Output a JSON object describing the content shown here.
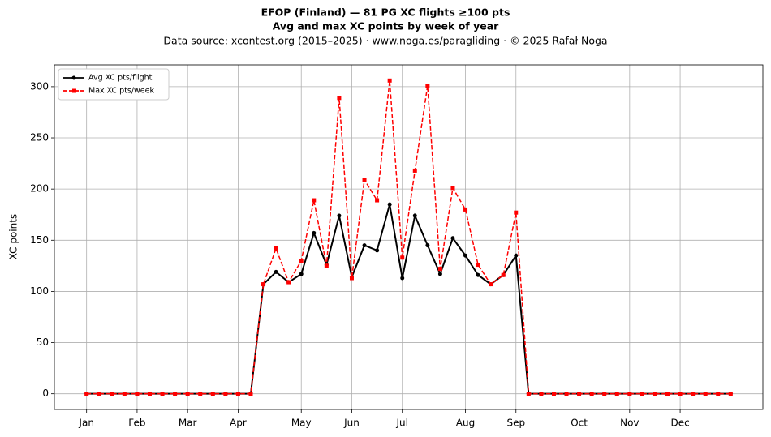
{
  "chart_data": {
    "type": "line",
    "title": "EFOP (Finland)  —  81 PG XC flights ≥100 pts",
    "subtitle": "Avg and max XC points by week of year",
    "source": "Data source: xcontest.org (2015–2025)  ·  www.noga.es/paragliding  ·  © 2025 Rafał Noga",
    "ylabel": "XC points",
    "x": [
      1,
      2,
      3,
      4,
      5,
      6,
      7,
      8,
      9,
      10,
      11,
      12,
      13,
      14,
      15,
      16,
      17,
      18,
      19,
      20,
      21,
      22,
      23,
      24,
      25,
      26,
      27,
      28,
      29,
      30,
      31,
      32,
      33,
      34,
      35,
      36,
      37,
      38,
      39,
      40,
      41,
      42,
      43,
      44,
      45,
      46,
      47,
      48,
      49,
      50,
      51,
      52
    ],
    "series": [
      {
        "name": "Avg XC pts/flight",
        "color": "#000000",
        "marker": "circle",
        "dash": "solid",
        "values": [
          0,
          0,
          0,
          0,
          0,
          0,
          0,
          0,
          0,
          0,
          0,
          0,
          0,
          0,
          107,
          119,
          109,
          117,
          157,
          126,
          174,
          114,
          145,
          140,
          185,
          113,
          174,
          145,
          117,
          152,
          135,
          116,
          107,
          116,
          135,
          0,
          0,
          0,
          0,
          0,
          0,
          0,
          0,
          0,
          0,
          0,
          0,
          0,
          0,
          0,
          0,
          0
        ]
      },
      {
        "name": "Max XC pts/week",
        "color": "#ff0000",
        "marker": "square",
        "dash": "dashed",
        "values": [
          0,
          0,
          0,
          0,
          0,
          0,
          0,
          0,
          0,
          0,
          0,
          0,
          0,
          0,
          107,
          142,
          109,
          130,
          189,
          125,
          289,
          113,
          209,
          189,
          306,
          133,
          218,
          301,
          122,
          201,
          180,
          126,
          107,
          116,
          177,
          0,
          0,
          0,
          0,
          0,
          0,
          0,
          0,
          0,
          0,
          0,
          0,
          0,
          0,
          0,
          0,
          0
        ]
      }
    ],
    "xlim": [
      -1.55,
      54.55
    ],
    "xticks": [
      {
        "value": 1,
        "label": "Jan"
      },
      {
        "value": 5,
        "label": "Feb"
      },
      {
        "value": 9,
        "label": "Mar"
      },
      {
        "value": 13,
        "label": "Apr"
      },
      {
        "value": 18,
        "label": "May"
      },
      {
        "value": 22,
        "label": "Jun"
      },
      {
        "value": 26,
        "label": "Jul"
      },
      {
        "value": 31,
        "label": "Aug"
      },
      {
        "value": 35,
        "label": "Sep"
      },
      {
        "value": 40,
        "label": "Oct"
      },
      {
        "value": 44,
        "label": "Nov"
      },
      {
        "value": 48,
        "label": "Dec"
      }
    ],
    "ylim": [
      -15.3,
      321.3
    ],
    "yticks": [
      0,
      50,
      100,
      150,
      200,
      250,
      300
    ],
    "grid": true,
    "legend": "upper left"
  }
}
